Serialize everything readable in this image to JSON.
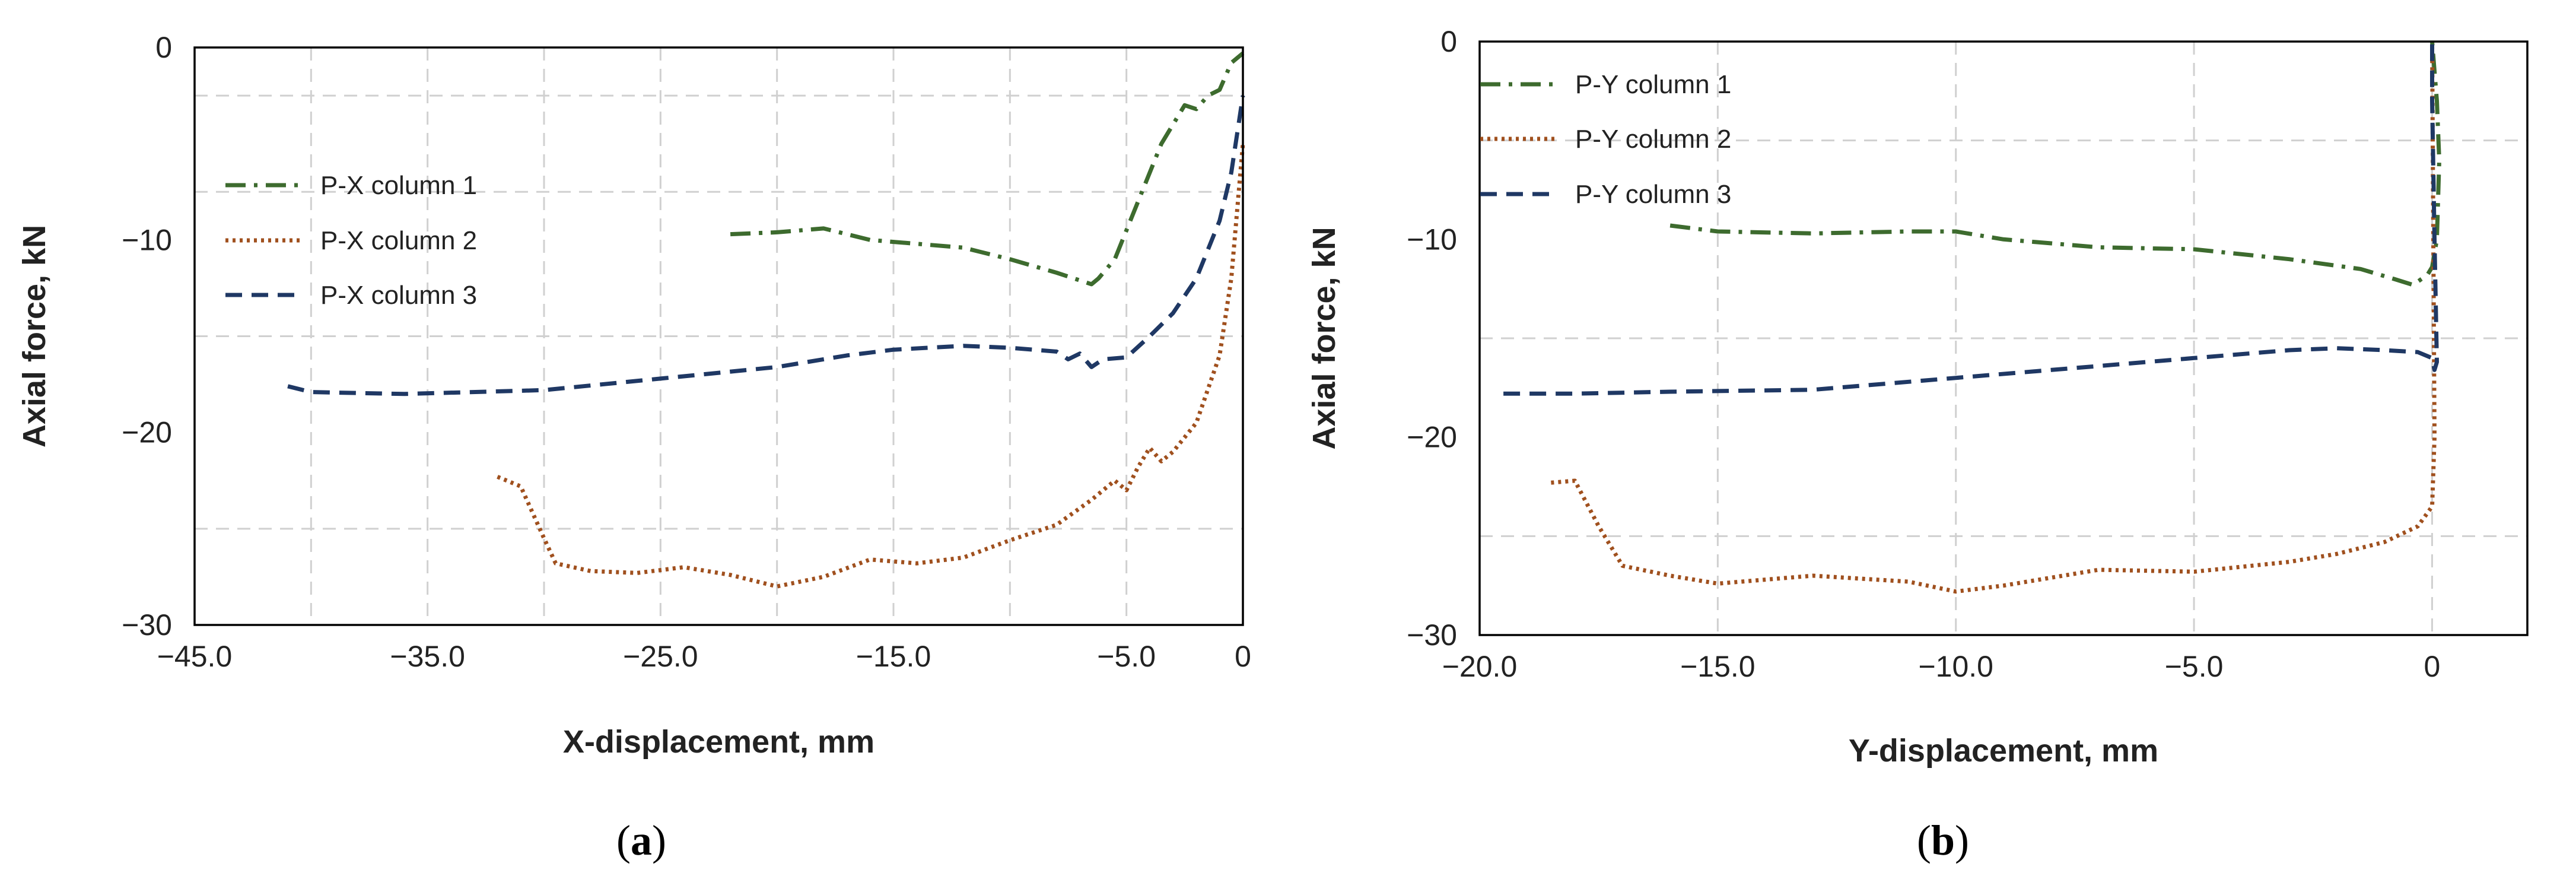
{
  "colors": {
    "series1": "#3d6b2e",
    "series2": "#a0501e",
    "series3": "#1f3864"
  },
  "panel_labels": [
    {
      "open": "(",
      "letter": "a",
      "close": ")"
    },
    {
      "open": "(",
      "letter": "b",
      "close": ")"
    }
  ],
  "chart_data": [
    {
      "type": "line",
      "xlabel": "X-displacement, mm",
      "ylabel": "Axial force, kN",
      "xlim": [
        -45,
        0
      ],
      "ylim": [
        -30,
        0
      ],
      "xticks": [
        -45,
        -35,
        -25,
        -15,
        -5,
        0
      ],
      "xtick_labels": [
        "−45.0",
        "−35.0",
        "−25.0",
        "−15.0",
        "−5.0",
        "0"
      ],
      "yticks": [
        0,
        -10,
        -20,
        -30
      ],
      "ytick_labels": [
        "0",
        "−10",
        "−20",
        "−30"
      ],
      "xgrid": [
        -40,
        -35,
        -30,
        -25,
        -20,
        -15,
        -10,
        -5
      ],
      "ygrid": [
        -2.5,
        -7.5,
        -15,
        -25
      ],
      "legend": "upper-left",
      "series": [
        {
          "name": "P-X column 1",
          "color_key": "series1",
          "dash": "dashdot",
          "points": [
            [
              -22,
              -9.7
            ],
            [
              -20,
              -9.6
            ],
            [
              -18,
              -9.4
            ],
            [
              -16,
              -10
            ],
            [
              -14,
              -10.2
            ],
            [
              -12,
              -10.4
            ],
            [
              -10,
              -11
            ],
            [
              -8,
              -11.7
            ],
            [
              -6.5,
              -12.3
            ],
            [
              -6.2,
              -12.0
            ],
            [
              -5.5,
              -11
            ],
            [
              -4.5,
              -8
            ],
            [
              -3.5,
              -5
            ],
            [
              -2.5,
              -3
            ],
            [
              -2,
              -3.2
            ],
            [
              -1.5,
              -2.5
            ],
            [
              -1,
              -2.2
            ],
            [
              -0.5,
              -0.8
            ],
            [
              0,
              -0.3
            ]
          ]
        },
        {
          "name": "P-X column 2",
          "color_key": "series2",
          "dash": "dotted",
          "points": [
            [
              -32,
              -22.3
            ],
            [
              -31,
              -22.8
            ],
            [
              -30,
              -25.5
            ],
            [
              -29.5,
              -26.8
            ],
            [
              -28,
              -27.2
            ],
            [
              -26,
              -27.3
            ],
            [
              -24,
              -27
            ],
            [
              -22,
              -27.4
            ],
            [
              -20,
              -28
            ],
            [
              -18,
              -27.5
            ],
            [
              -16,
              -26.6
            ],
            [
              -14,
              -26.8
            ],
            [
              -12,
              -26.5
            ],
            [
              -10,
              -25.6
            ],
            [
              -8,
              -24.8
            ],
            [
              -6.5,
              -23.5
            ],
            [
              -5.5,
              -22.5
            ],
            [
              -5,
              -23
            ],
            [
              -4.5,
              -21.8
            ],
            [
              -4,
              -20.8
            ],
            [
              -3.5,
              -21.5
            ],
            [
              -3,
              -21
            ],
            [
              -2,
              -19.5
            ],
            [
              -1,
              -16
            ],
            [
              -0.5,
              -12
            ],
            [
              0,
              -5
            ]
          ]
        },
        {
          "name": "P-X column 3",
          "color_key": "series3",
          "dash": "dashed",
          "points": [
            [
              -41,
              -17.6
            ],
            [
              -40,
              -17.9
            ],
            [
              -36,
              -18
            ],
            [
              -30,
              -17.8
            ],
            [
              -25,
              -17.2
            ],
            [
              -20,
              -16.6
            ],
            [
              -17,
              -16
            ],
            [
              -15,
              -15.7
            ],
            [
              -12,
              -15.5
            ],
            [
              -10,
              -15.6
            ],
            [
              -8,
              -15.8
            ],
            [
              -7.5,
              -16.2
            ],
            [
              -7,
              -15.9
            ],
            [
              -6.5,
              -16.6
            ],
            [
              -6,
              -16.2
            ],
            [
              -5,
              -16.1
            ],
            [
              -4,
              -15
            ],
            [
              -3,
              -13.8
            ],
            [
              -2,
              -12
            ],
            [
              -1,
              -9
            ],
            [
              -0.5,
              -6.5
            ],
            [
              0,
              -2.5
            ]
          ]
        }
      ]
    },
    {
      "type": "line",
      "xlabel": "Y-displacement, mm",
      "ylabel": "Axial force, kN",
      "xlim": [
        -20,
        2
      ],
      "ylim": [
        -30,
        0
      ],
      "xticks": [
        -20,
        -15,
        -10,
        -5,
        0
      ],
      "xtick_labels": [
        "−20.0",
        "−15.0",
        "−10.0",
        "−5.0",
        "0"
      ],
      "yticks": [
        0,
        -10,
        -20,
        -30
      ],
      "ytick_labels": [
        "0",
        "−10",
        "−20",
        "−30"
      ],
      "xgrid": [
        -15,
        -10,
        -5,
        0
      ],
      "ygrid": [
        -5,
        -15,
        -25
      ],
      "legend": "upper-left",
      "series": [
        {
          "name": "P-Y column 1",
          "color_key": "series1",
          "dash": "dashdot",
          "points": [
            [
              -16,
              -9.3
            ],
            [
              -15,
              -9.6
            ],
            [
              -13,
              -9.7
            ],
            [
              -11,
              -9.6
            ],
            [
              -10,
              -9.6
            ],
            [
              -9,
              -10
            ],
            [
              -7,
              -10.4
            ],
            [
              -5,
              -10.5
            ],
            [
              -3,
              -11
            ],
            [
              -1.5,
              -11.5
            ],
            [
              -0.8,
              -12
            ],
            [
              -0.4,
              -12.3
            ],
            [
              -0.1,
              -11.8
            ],
            [
              0,
              -11.4
            ],
            [
              0.1,
              -10
            ],
            [
              0.15,
              -6
            ],
            [
              0.1,
              -3
            ],
            [
              0,
              0
            ]
          ]
        },
        {
          "name": "P-Y column 2",
          "color_key": "series2",
          "dash": "dotted",
          "points": [
            [
              -18.5,
              -22.3
            ],
            [
              -18,
              -22.2
            ],
            [
              -17.5,
              -24.5
            ],
            [
              -17,
              -26.5
            ],
            [
              -16,
              -27
            ],
            [
              -15,
              -27.4
            ],
            [
              -13,
              -27
            ],
            [
              -11,
              -27.3
            ],
            [
              -10,
              -27.8
            ],
            [
              -9,
              -27.5
            ],
            [
              -7,
              -26.7
            ],
            [
              -5,
              -26.8
            ],
            [
              -3,
              -26.3
            ],
            [
              -2,
              -25.9
            ],
            [
              -1,
              -25.3
            ],
            [
              -0.3,
              -24.5
            ],
            [
              0,
              -23.5
            ],
            [
              0.05,
              -20
            ],
            [
              0,
              0
            ]
          ]
        },
        {
          "name": "P-Y column 3",
          "color_key": "series3",
          "dash": "dashed",
          "points": [
            [
              -19.5,
              -17.8
            ],
            [
              -18,
              -17.8
            ],
            [
              -16,
              -17.7
            ],
            [
              -13,
              -17.6
            ],
            [
              -10,
              -17
            ],
            [
              -7,
              -16.4
            ],
            [
              -5,
              -16
            ],
            [
              -3,
              -15.6
            ],
            [
              -2,
              -15.5
            ],
            [
              -1,
              -15.6
            ],
            [
              -0.3,
              -15.7
            ],
            [
              0,
              -16
            ],
            [
              0.05,
              -16.6
            ],
            [
              0.1,
              -16.2
            ],
            [
              0.05,
              -10
            ],
            [
              0,
              -3
            ],
            [
              0,
              0
            ]
          ]
        }
      ]
    }
  ]
}
